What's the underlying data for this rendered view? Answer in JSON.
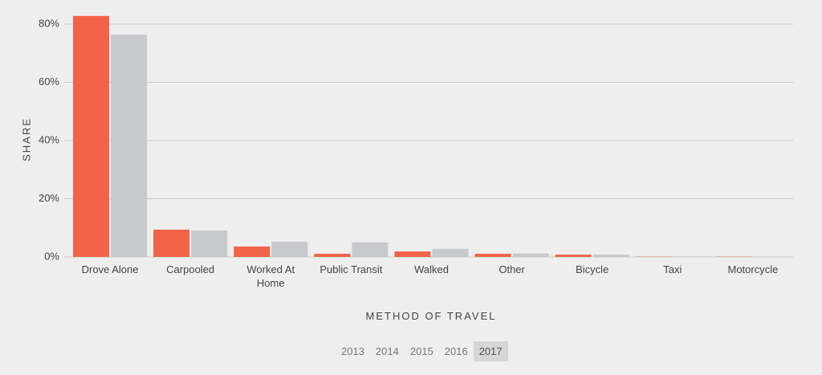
{
  "chart_data": {
    "type": "bar",
    "x_label": "METHOD OF TRAVEL",
    "y_label": "SHARE",
    "categories": [
      "Drove Alone",
      "Carpooled",
      "Worked At Home",
      "Public Transit",
      "Walked",
      "Other",
      "Bicycle",
      "Taxi",
      "Motorcycle"
    ],
    "series": [
      {
        "color": "#f26449",
        "values": [
          82.8,
          9.4,
          3.6,
          1.1,
          1.9,
          1.1,
          0.8,
          0.1,
          0.1
        ]
      },
      {
        "color": "#c8c9cc",
        "values": [
          76.4,
          9.1,
          5.2,
          5.0,
          2.8,
          1.2,
          0.8,
          0.2,
          0.1
        ]
      }
    ],
    "ylim": [
      0,
      84
    ],
    "yticks": [
      {
        "value": 0,
        "label": "0%"
      },
      {
        "value": 20,
        "label": "20%"
      },
      {
        "value": 40,
        "label": "40%"
      },
      {
        "value": 60,
        "label": "60%"
      },
      {
        "value": 80,
        "label": "80%"
      }
    ],
    "grid": true,
    "year_selector": {
      "years": [
        "2013",
        "2014",
        "2015",
        "2016",
        "2017"
      ],
      "selected_index": 4
    }
  }
}
